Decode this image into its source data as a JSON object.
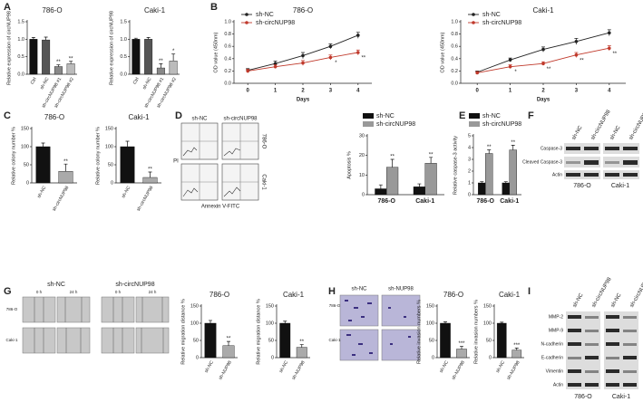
{
  "panel_labels": [
    "A",
    "B",
    "C",
    "D",
    "E",
    "F",
    "G",
    "H",
    "I"
  ],
  "flow": {
    "columns": [
      "sh-NC",
      "sh-circNUP98"
    ],
    "rows": [
      "786-O",
      "Caki-1"
    ],
    "y_label": "PI",
    "x_label": "Annexin V-FITC"
  },
  "blot_f": {
    "lanes": [
      "sh-NC",
      "sh-circNUP98",
      "sh-NC",
      "sh-circNUP98"
    ],
    "proteins": [
      "Caspase-3",
      "Cleaved Caspase-3",
      "Actin"
    ],
    "cells": [
      "786-O",
      "Caki-1"
    ]
  },
  "wound": {
    "groups": [
      "sh-NC",
      "sh-circNUP98"
    ],
    "times": [
      "0 h",
      "24 h",
      "0 h",
      "24 h"
    ],
    "rows": [
      "786-O",
      "Caki-1"
    ]
  },
  "invasion": {
    "groups": [
      "sh-NC",
      "sh-NUP98"
    ],
    "rows": [
      "786-O",
      "Caki-1"
    ]
  },
  "blot_i": {
    "lanes": [
      "sh-NC",
      "sh-circNUP98",
      "sh-NC",
      "sh-circNUP98"
    ],
    "proteins": [
      "MMP-2",
      "MMP-9",
      "N-cadherin",
      "E-cadherin",
      "Vimentin",
      "Actin"
    ],
    "cells": [
      "786-O",
      "Caki-1"
    ]
  },
  "chart_data": [
    {
      "type": "bar",
      "title": "786-O",
      "ylabel": "Relative expression of circNUP98",
      "categories": [
        "Ctrl",
        "sh-NC",
        "sh-circNUP98 #1",
        "sh-circNUP98 #2"
      ],
      "values": [
        1.0,
        0.98,
        0.22,
        0.3
      ],
      "errors": [
        0.05,
        0.08,
        0.05,
        0.07
      ],
      "annotations": [
        null,
        null,
        "**",
        "**"
      ],
      "colors": [
        "#111111",
        "#555555",
        "#888888",
        "#bbbbbb"
      ],
      "ylim": [
        0,
        1.5
      ],
      "yticks": [
        {
          "value": 0,
          "label": "0.0"
        },
        {
          "value": 0.5,
          "label": "0.5"
        },
        {
          "value": 1,
          "label": "1.0"
        },
        {
          "value": 1.5,
          "label": "1.5"
        }
      ]
    },
    {
      "type": "bar",
      "title": "Caki-1",
      "ylabel": "Relative expression of circNUP98",
      "categories": [
        "Ctrl",
        "sh-NC",
        "sh-circNUP98 #1",
        "sh-circNUP98 #2"
      ],
      "values": [
        1.0,
        1.0,
        0.18,
        0.38
      ],
      "errors": [
        0.03,
        0.05,
        0.12,
        0.2
      ],
      "annotations": [
        null,
        null,
        "**",
        "*"
      ],
      "colors": [
        "#111111",
        "#555555",
        "#888888",
        "#bbbbbb"
      ],
      "ylim": [
        0,
        1.5
      ],
      "yticks": [
        {
          "value": 0,
          "label": "0.0"
        },
        {
          "value": 0.5,
          "label": "0.5"
        },
        {
          "value": 1,
          "label": "1.0"
        },
        {
          "value": 1.5,
          "label": "1.5"
        }
      ]
    },
    {
      "type": "line",
      "title": "786-O",
      "ylabel": "OD value (450nm)",
      "xlabel": "Days",
      "x": [
        0,
        1,
        2,
        3,
        4
      ],
      "xlim": [
        -0.5,
        4.5
      ],
      "xticks": [
        0,
        1,
        2,
        3,
        4
      ],
      "ylim": [
        0,
        1.0
      ],
      "yticks": [
        {
          "value": 0,
          "label": "0.0"
        },
        {
          "value": 0.2,
          "label": "0.2"
        },
        {
          "value": 0.4,
          "label": "0.4"
        },
        {
          "value": 0.6,
          "label": "0.6"
        },
        {
          "value": 0.8,
          "label": "0.8"
        },
        {
          "value": 1,
          "label": "1.0"
        }
      ],
      "series": [
        {
          "name": "sh-NC",
          "color": "#222222",
          "values": [
            0.21,
            0.32,
            0.45,
            0.6,
            0.78
          ],
          "errors": [
            0.03,
            0.04,
            0.05,
            0.04,
            0.05
          ],
          "annotations": [
            null,
            null,
            null,
            null,
            null
          ]
        },
        {
          "name": "sh-circNUP98",
          "color": "#c0392b",
          "values": [
            0.2,
            0.27,
            0.33,
            0.42,
            0.5
          ],
          "errors": [
            0.03,
            0.03,
            0.04,
            0.04,
            0.04
          ],
          "annotations": [
            null,
            null,
            null,
            "*",
            "**"
          ]
        }
      ]
    },
    {
      "type": "line",
      "title": "Caki-1",
      "ylabel": "OD value (450nm)",
      "xlabel": "Days",
      "x": [
        0,
        1,
        2,
        3,
        4
      ],
      "xlim": [
        -0.5,
        4.5
      ],
      "xticks": [
        0,
        1,
        2,
        3,
        4
      ],
      "ylim": [
        0,
        1.0
      ],
      "yticks": [
        {
          "value": 0,
          "label": "0.0"
        },
        {
          "value": 0.2,
          "label": "0.2"
        },
        {
          "value": 0.4,
          "label": "0.4"
        },
        {
          "value": 0.6,
          "label": "0.6"
        },
        {
          "value": 0.8,
          "label": "0.8"
        },
        {
          "value": 1,
          "label": "1.0"
        }
      ],
      "series": [
        {
          "name": "sh-NC",
          "color": "#222222",
          "values": [
            0.18,
            0.38,
            0.55,
            0.68,
            0.82
          ],
          "errors": [
            0.02,
            0.03,
            0.04,
            0.05,
            0.05
          ],
          "annotations": [
            null,
            null,
            null,
            null,
            null
          ]
        },
        {
          "name": "sh-circNUP98",
          "color": "#c0392b",
          "values": [
            0.17,
            0.27,
            0.32,
            0.46,
            0.57
          ],
          "errors": [
            0.02,
            0.03,
            0.03,
            0.04,
            0.04
          ],
          "annotations": [
            null,
            "*",
            "**",
            "**",
            "**"
          ]
        }
      ]
    },
    {
      "type": "bar",
      "title": "786-O",
      "ylabel": "Relative colony number %",
      "categories": [
        "sh-NC",
        "sh-circNUP98"
      ],
      "values": [
        100,
        32
      ],
      "errors": [
        10,
        20
      ],
      "annotations": [
        null,
        "**"
      ],
      "colors": [
        "#111111",
        "#aaaaaa"
      ],
      "ylim": [
        0,
        150
      ],
      "yticks": [
        0,
        50,
        100,
        150
      ]
    },
    {
      "type": "bar",
      "title": "Caki-1",
      "ylabel": "Relative colony number %",
      "categories": [
        "sh-NC",
        "sh-circNUP98"
      ],
      "values": [
        100,
        15
      ],
      "errors": [
        15,
        15
      ],
      "annotations": [
        null,
        "**"
      ],
      "colors": [
        "#111111",
        "#aaaaaa"
      ],
      "ylim": [
        0,
        150
      ],
      "yticks": [
        0,
        50,
        100,
        150
      ]
    },
    {
      "type": "grouped_bar",
      "ylabel": "Apoptosis %",
      "categories": [
        "786-O",
        "Caki-1"
      ],
      "ylim": [
        0,
        30
      ],
      "yticks": [
        0,
        10,
        20,
        30
      ],
      "series": [
        {
          "name": "sh-NC",
          "color": "#111111",
          "values": [
            3,
            4
          ],
          "errors": [
            2,
            1.5
          ],
          "annotations": [
            null,
            null
          ]
        },
        {
          "name": "sh-circNUP98",
          "color": "#999999",
          "values": [
            14,
            16
          ],
          "errors": [
            4,
            3
          ],
          "annotations": [
            "**",
            "**"
          ]
        }
      ]
    },
    {
      "type": "grouped_bar",
      "ylabel": "Relative caspase-3 activity",
      "categories": [
        "786-O",
        "Caki-1"
      ],
      "ylim": [
        0,
        5
      ],
      "yticks": [
        0,
        1,
        2,
        3,
        4,
        5
      ],
      "series": [
        {
          "name": "sh-NC",
          "color": "#111111",
          "values": [
            1.0,
            1.0
          ],
          "errors": [
            0.1,
            0.1
          ],
          "annotations": [
            null,
            null
          ]
        },
        {
          "name": "sh-circNUP98",
          "color": "#999999",
          "values": [
            3.5,
            3.8
          ],
          "errors": [
            0.3,
            0.4
          ],
          "annotations": [
            "**",
            "**"
          ]
        }
      ]
    },
    {
      "type": "bar",
      "title": "786-O",
      "ylabel": "Relative migration distance %",
      "categories": [
        "sh-NC",
        "sh-NUP98"
      ],
      "values": [
        100,
        35
      ],
      "errors": [
        8,
        12
      ],
      "annotations": [
        null,
        "**"
      ],
      "colors": [
        "#111111",
        "#aaaaaa"
      ],
      "ylim": [
        0,
        150
      ],
      "yticks": [
        0,
        50,
        100,
        150
      ]
    },
    {
      "type": "bar",
      "title": "Caki-1",
      "ylabel": "Relative migration distance %",
      "categories": [
        "sh-NC",
        "sh-NUP98"
      ],
      "values": [
        100,
        30
      ],
      "errors": [
        6,
        8
      ],
      "annotations": [
        null,
        "**"
      ],
      "colors": [
        "#111111",
        "#aaaaaa"
      ],
      "ylim": [
        0,
        150
      ],
      "yticks": [
        0,
        50,
        100,
        150
      ]
    },
    {
      "type": "bar",
      "title": "786-O",
      "ylabel": "Relative invasion numbers %",
      "categories": [
        "sh-NC",
        "sh-NUP98"
      ],
      "values": [
        100,
        25
      ],
      "errors": [
        4,
        8
      ],
      "annotations": [
        null,
        "***"
      ],
      "colors": [
        "#111111",
        "#aaaaaa"
      ],
      "ylim": [
        0,
        150
      ],
      "yticks": [
        0,
        50,
        100,
        150
      ]
    },
    {
      "type": "bar",
      "title": "Caki-1",
      "ylabel": "Relative invasion numbers %",
      "categories": [
        "sh-NC",
        "sh-NUP98"
      ],
      "values": [
        100,
        22
      ],
      "errors": [
        3,
        6
      ],
      "annotations": [
        null,
        "***"
      ],
      "colors": [
        "#111111",
        "#aaaaaa"
      ],
      "ylim": [
        0,
        150
      ],
      "yticks": [
        0,
        50,
        100,
        150
      ]
    }
  ]
}
